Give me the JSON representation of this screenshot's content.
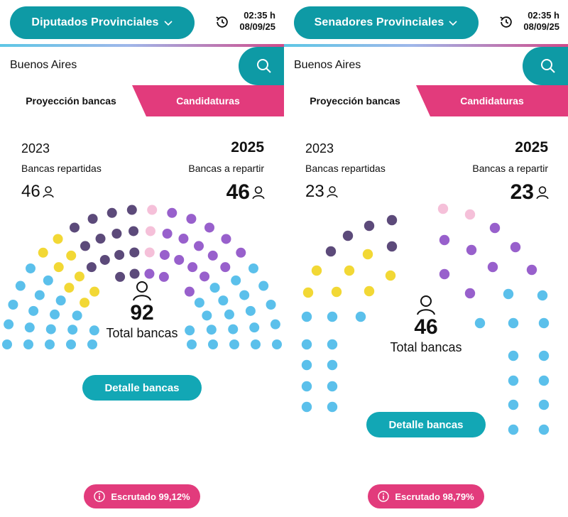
{
  "colors": {
    "teal": "#0e9aa5",
    "pink": "#e23b7c",
    "seat_light_blue": "#5bc0eb",
    "seat_yellow": "#f2d835",
    "seat_dark_purple": "#5c4a7a",
    "seat_purple": "#9860cc",
    "seat_light_pink": "#f5c0d9",
    "seat_red": "#e0282a"
  },
  "panels": [
    {
      "selector_label": "Diputados Provinciales",
      "time": "02:35 h",
      "date": "08/09/25",
      "search_value": "Buenos Aires",
      "tab_active": "Proyección bancas",
      "tab_other": "Candidaturas",
      "year_prev": "2023",
      "year_next": "2025",
      "label_prev": "Bancas repartidas",
      "label_next": "Bancas a repartir",
      "seats_prev": "46",
      "seats_next": "46",
      "total_seats": "92",
      "total_label": "Total bancas",
      "detail_button": "Detalle bancas",
      "scrutiny": "Escrutado 99,12%"
    },
    {
      "selector_label": "Senadores Provinciales",
      "time": "02:35 h",
      "date": "08/09/25",
      "search_value": "Buenos Aires",
      "tab_active": "Proyección bancas",
      "tab_other": "Candidaturas",
      "year_prev": "2023",
      "year_next": "2025",
      "label_prev": "Bancas repartidas",
      "label_next": "Bancas a repartir",
      "seats_prev": "23",
      "seats_next": "23",
      "total_seats": "46",
      "total_label": "Total bancas",
      "detail_button": "Detalle bancas",
      "scrutiny": "Escrutado 98,79%"
    }
  ],
  "icons": [
    "chevron-down-icon",
    "clock-history-icon",
    "search-icon",
    "user-icon",
    "info-icon"
  ]
}
